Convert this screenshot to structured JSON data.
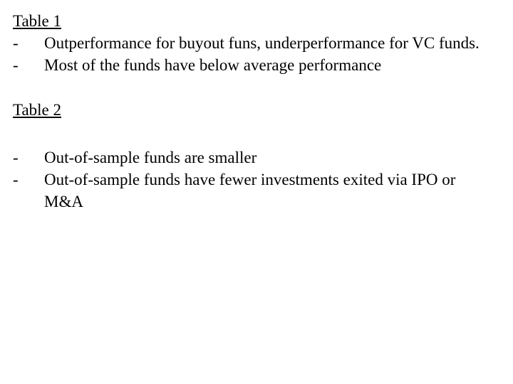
{
  "section1": {
    "heading": "Table 1",
    "items": [
      "Outperformance for buyout funs, underperformance for VC funds.",
      "Most of the funds have below average performance"
    ]
  },
  "section2": {
    "heading": "Table 2",
    "items": [
      "Out-of-sample funds are smaller",
      "Out-of-sample funds have fewer investments exited via IPO or M&A"
    ]
  },
  "bullet_char": "-"
}
